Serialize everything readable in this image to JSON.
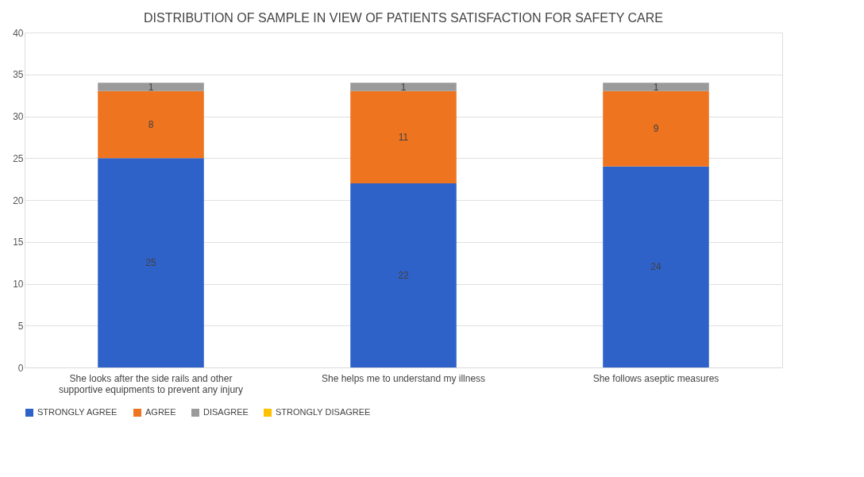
{
  "chart_data": {
    "type": "bar",
    "stacked": true,
    "title": "DISTRIBUTION OF SAMPLE IN VIEW OF PATIENTS SATISFACTION FOR SAFETY CARE",
    "categories": [
      "She looks after the side rails and other supportive equipments to prevent any injury",
      "She helps me to understand my illness",
      "She follows aseptic measures"
    ],
    "series": [
      {
        "name": "STRONGLY AGREE",
        "color": "#2f62c8",
        "values": [
          25,
          22,
          24
        ],
        "value_labels": [
          "25",
          "22",
          "24"
        ]
      },
      {
        "name": "AGREE",
        "color": "#ee7420",
        "values": [
          8,
          11,
          9
        ],
        "value_labels": [
          "8",
          "11",
          "9"
        ]
      },
      {
        "name": "DISAGREE",
        "color": "#9a9a9a",
        "values": [
          1,
          1,
          1
        ],
        "value_labels": [
          "1",
          "1",
          "1"
        ]
      },
      {
        "name": "STRONGLY DISAGREE",
        "color": "#ffc000",
        "values": [
          0,
          0,
          0
        ],
        "value_labels": [
          null,
          null,
          null
        ]
      }
    ],
    "ylim": [
      0,
      40
    ],
    "yticks": [
      0,
      5,
      10,
      15,
      20,
      25,
      30,
      35,
      40
    ],
    "grid": "y",
    "legend": "bottom"
  }
}
